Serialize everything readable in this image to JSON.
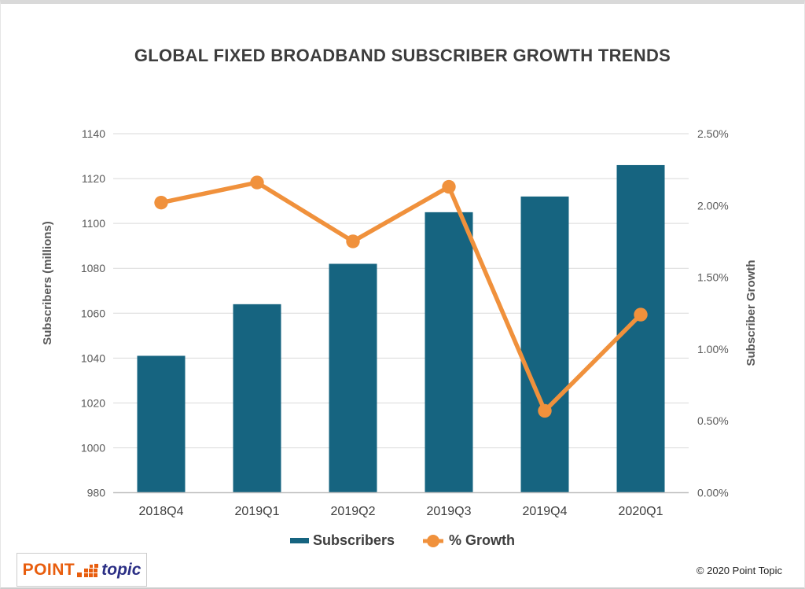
{
  "page": {
    "title": "GLOBAL FIXED BROADBAND SUBSCRIBER GROWTH TRENDS",
    "copyright": "© 2020 Point Topic"
  },
  "logo": {
    "word1": "POINT",
    "word2": "topic"
  },
  "colors": {
    "bar": "#166480",
    "line": "#F0913C",
    "gridline": "#d9d9d9",
    "axis_line": "#bfbfbf",
    "tick_text": "#595959",
    "category_text": "#3d3d3d",
    "logo_orange": "#E85D0D",
    "logo_navy": "#2B2F85"
  },
  "chart_data": {
    "type": "bar",
    "subtype": "combo-bar-line-dual-axis",
    "title": "GLOBAL FIXED BROADBAND SUBSCRIBER GROWTH TRENDS",
    "categories": [
      "2018Q4",
      "2019Q1",
      "2019Q2",
      "2019Q3",
      "2019Q4",
      "2020Q1"
    ],
    "series": [
      {
        "name": "Subscribers",
        "type": "bar",
        "axis": "left",
        "values": [
          1041,
          1064,
          1082,
          1105,
          1112,
          1126
        ],
        "color": "#166480"
      },
      {
        "name": "% Growth",
        "type": "line",
        "axis": "right",
        "values": [
          2.02,
          2.16,
          1.75,
          2.13,
          0.57,
          1.24
        ],
        "color": "#F0913C"
      }
    ],
    "left_axis": {
      "title": "Subscribers (millions)",
      "min": 980,
      "max": 1140,
      "step": 20,
      "tick_labels": [
        "980",
        "1000",
        "1020",
        "1040",
        "1060",
        "1080",
        "1100",
        "1120",
        "1140"
      ]
    },
    "right_axis": {
      "title": "Subscriber Growth",
      "min": 0,
      "max": 2.5,
      "step": 0.5,
      "tick_labels": [
        "0.00%",
        "0.50%",
        "1.00%",
        "1.50%",
        "2.00%",
        "2.50%"
      ]
    },
    "grid": true,
    "legend_position": "bottom",
    "legend": [
      "Subscribers",
      "% Growth"
    ]
  }
}
